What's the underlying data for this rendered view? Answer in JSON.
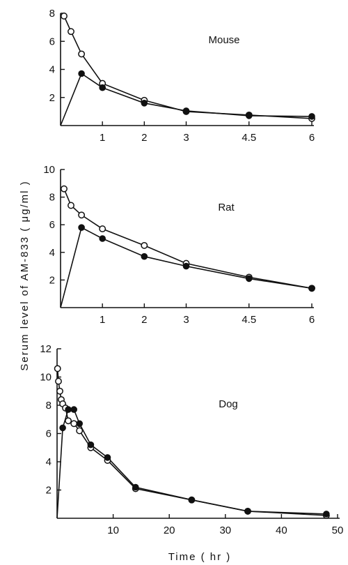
{
  "ylabel": "Serum  level  of  AM-833  ( μg/ml )",
  "xlabel": "Time ( hr )",
  "chart_data": [
    {
      "type": "line",
      "title": "Mouse",
      "ylim": [
        0,
        8
      ],
      "xlim": [
        0,
        6
      ],
      "x_ticks": [
        1,
        2,
        3,
        4.5,
        6
      ],
      "x_tick_labels": [
        "1",
        "2",
        "3",
        "4.5",
        "6"
      ],
      "y_ticks": [
        2,
        4,
        6,
        8
      ],
      "y_tick_labels": [
        "2",
        "4",
        "6",
        "8"
      ],
      "series": [
        {
          "marker": "open",
          "x": [
            0.083,
            0.25,
            0.5,
            1,
            2,
            3,
            4.5,
            6
          ],
          "y": [
            7.8,
            6.7,
            5.1,
            3.0,
            1.8,
            1.0,
            0.75,
            0.5
          ]
        },
        {
          "marker": "filled",
          "x": [
            0,
            0.5,
            1,
            2,
            3,
            4.5,
            6
          ],
          "y": [
            0,
            3.7,
            2.7,
            1.6,
            1.05,
            0.7,
            0.65
          ]
        }
      ]
    },
    {
      "type": "line",
      "title": "Rat",
      "ylim": [
        0,
        10
      ],
      "xlim": [
        0,
        6
      ],
      "x_ticks": [
        1,
        2,
        3,
        4.5,
        6
      ],
      "x_tick_labels": [
        "1",
        "2",
        "3",
        "4.5",
        "6"
      ],
      "y_ticks": [
        2,
        4,
        6,
        8,
        10
      ],
      "y_tick_labels": [
        "2",
        "4",
        "6",
        "8",
        "10"
      ],
      "series": [
        {
          "marker": "open",
          "x": [
            0.083,
            0.25,
            0.5,
            1,
            2,
            3,
            4.5,
            6
          ],
          "y": [
            8.6,
            7.4,
            6.7,
            5.7,
            4.5,
            3.2,
            2.2,
            1.4
          ]
        },
        {
          "marker": "filled",
          "x": [
            0,
            0.5,
            1,
            2,
            3,
            4.5,
            6
          ],
          "y": [
            0,
            5.8,
            5.0,
            3.7,
            3.0,
            2.1,
            1.4
          ]
        }
      ]
    },
    {
      "type": "line",
      "title": "Dog",
      "ylim": [
        0,
        12
      ],
      "xlim": [
        0,
        50
      ],
      "x_ticks": [
        10,
        20,
        30,
        40,
        50
      ],
      "x_tick_labels": [
        "10",
        "20",
        "30",
        "40",
        "50"
      ],
      "y_ticks": [
        2,
        4,
        6,
        8,
        10,
        12
      ],
      "y_tick_labels": [
        "2",
        "4",
        "6",
        "8",
        "10",
        "12"
      ],
      "series": [
        {
          "marker": "open",
          "x": [
            0.083,
            0.25,
            0.5,
            0.75,
            1,
            1.5,
            2,
            3,
            4,
            6,
            9,
            14,
            24,
            34,
            48
          ],
          "y": [
            10.6,
            9.7,
            9.0,
            8.4,
            8.1,
            7.8,
            6.9,
            6.7,
            6.2,
            5.0,
            4.1,
            2.1,
            1.3,
            0.5,
            0.2
          ]
        },
        {
          "marker": "filled",
          "x": [
            0,
            1,
            2,
            3,
            4,
            6,
            9,
            14,
            24,
            34,
            48
          ],
          "y": [
            0,
            6.4,
            7.7,
            7.7,
            6.7,
            5.2,
            4.3,
            2.2,
            1.3,
            0.5,
            0.3
          ]
        }
      ]
    }
  ]
}
